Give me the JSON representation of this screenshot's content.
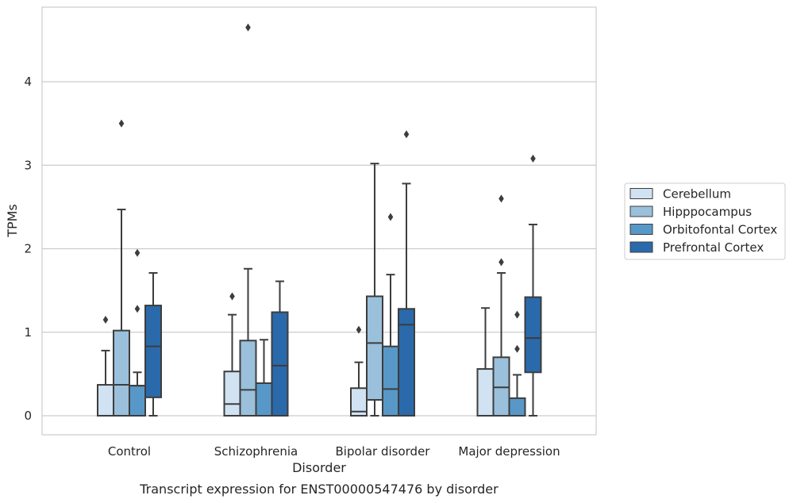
{
  "chart_data": {
    "type": "box",
    "caption": "Transcript expression for ENST00000547476 by disorder",
    "xlabel": "Disorder",
    "ylabel": "TPMs",
    "ylim": [
      -0.22,
      4.9
    ],
    "yticks": [
      0,
      1,
      2,
      3,
      4
    ],
    "grid": true,
    "legend_position": "right",
    "categories": [
      "Control",
      "Schizophrenia",
      "Bipolar disorder",
      "Major depression"
    ],
    "series": [
      {
        "name": "Cerebellum",
        "color": "#d1e2f2",
        "boxes": [
          {
            "whisker_low": 0,
            "q1": 0,
            "median": 0,
            "q3": 0.37,
            "whisker_high": 0.78,
            "outliers": [
              1.15
            ]
          },
          {
            "whisker_low": 0,
            "q1": 0,
            "median": 0.14,
            "q3": 0.53,
            "whisker_high": 1.21,
            "outliers": [
              1.43
            ]
          },
          {
            "whisker_low": 0,
            "q1": 0,
            "median": 0.05,
            "q3": 0.33,
            "whisker_high": 0.64,
            "outliers": [
              1.03
            ]
          },
          {
            "whisker_low": 0,
            "q1": 0,
            "median": 0,
            "q3": 0.56,
            "whisker_high": 1.29,
            "outliers": []
          }
        ]
      },
      {
        "name": "Hipppocampus",
        "color": "#9ac0db",
        "boxes": [
          {
            "whisker_low": 0,
            "q1": 0,
            "median": 0.37,
            "q3": 1.02,
            "whisker_high": 2.47,
            "outliers": [
              3.5
            ]
          },
          {
            "whisker_low": 0,
            "q1": 0,
            "median": 0.31,
            "q3": 0.9,
            "whisker_high": 1.76,
            "outliers": [
              4.65
            ]
          },
          {
            "whisker_low": 0,
            "q1": 0.19,
            "median": 0.87,
            "q3": 1.43,
            "whisker_high": 3.02,
            "outliers": []
          },
          {
            "whisker_low": 0,
            "q1": 0,
            "median": 0.34,
            "q3": 0.7,
            "whisker_high": 1.71,
            "outliers": [
              1.84,
              2.6
            ]
          }
        ]
      },
      {
        "name": "Orbitofontal Cortex",
        "color": "#5898c8",
        "boxes": [
          {
            "whisker_low": 0,
            "q1": 0,
            "median": 0.36,
            "q3": 0.36,
            "whisker_high": 0.52,
            "outliers": [
              1.28,
              1.95
            ]
          },
          {
            "whisker_low": 0,
            "q1": 0,
            "median": 0,
            "q3": 0.39,
            "whisker_high": 0.91,
            "outliers": []
          },
          {
            "whisker_low": 0,
            "q1": 0,
            "median": 0.32,
            "q3": 0.83,
            "whisker_high": 1.69,
            "outliers": [
              2.38
            ]
          },
          {
            "whisker_low": 0,
            "q1": 0,
            "median": 0,
            "q3": 0.21,
            "whisker_high": 0.49,
            "outliers": [
              0.8,
              1.21
            ]
          }
        ]
      },
      {
        "name": "Prefrontal Cortex",
        "color": "#2a6aab",
        "boxes": [
          {
            "whisker_low": 0,
            "q1": 0.22,
            "median": 0.83,
            "q3": 1.32,
            "whisker_high": 1.71,
            "outliers": []
          },
          {
            "whisker_low": 0,
            "q1": 0,
            "median": 0.6,
            "q3": 1.24,
            "whisker_high": 1.61,
            "outliers": []
          },
          {
            "whisker_low": 0,
            "q1": 0,
            "median": 1.09,
            "q3": 1.28,
            "whisker_high": 2.78,
            "outliers": [
              3.37
            ]
          },
          {
            "whisker_low": 0,
            "q1": 0.52,
            "median": 0.93,
            "q3": 1.42,
            "whisker_high": 2.29,
            "outliers": [
              3.08
            ]
          }
        ]
      }
    ]
  }
}
